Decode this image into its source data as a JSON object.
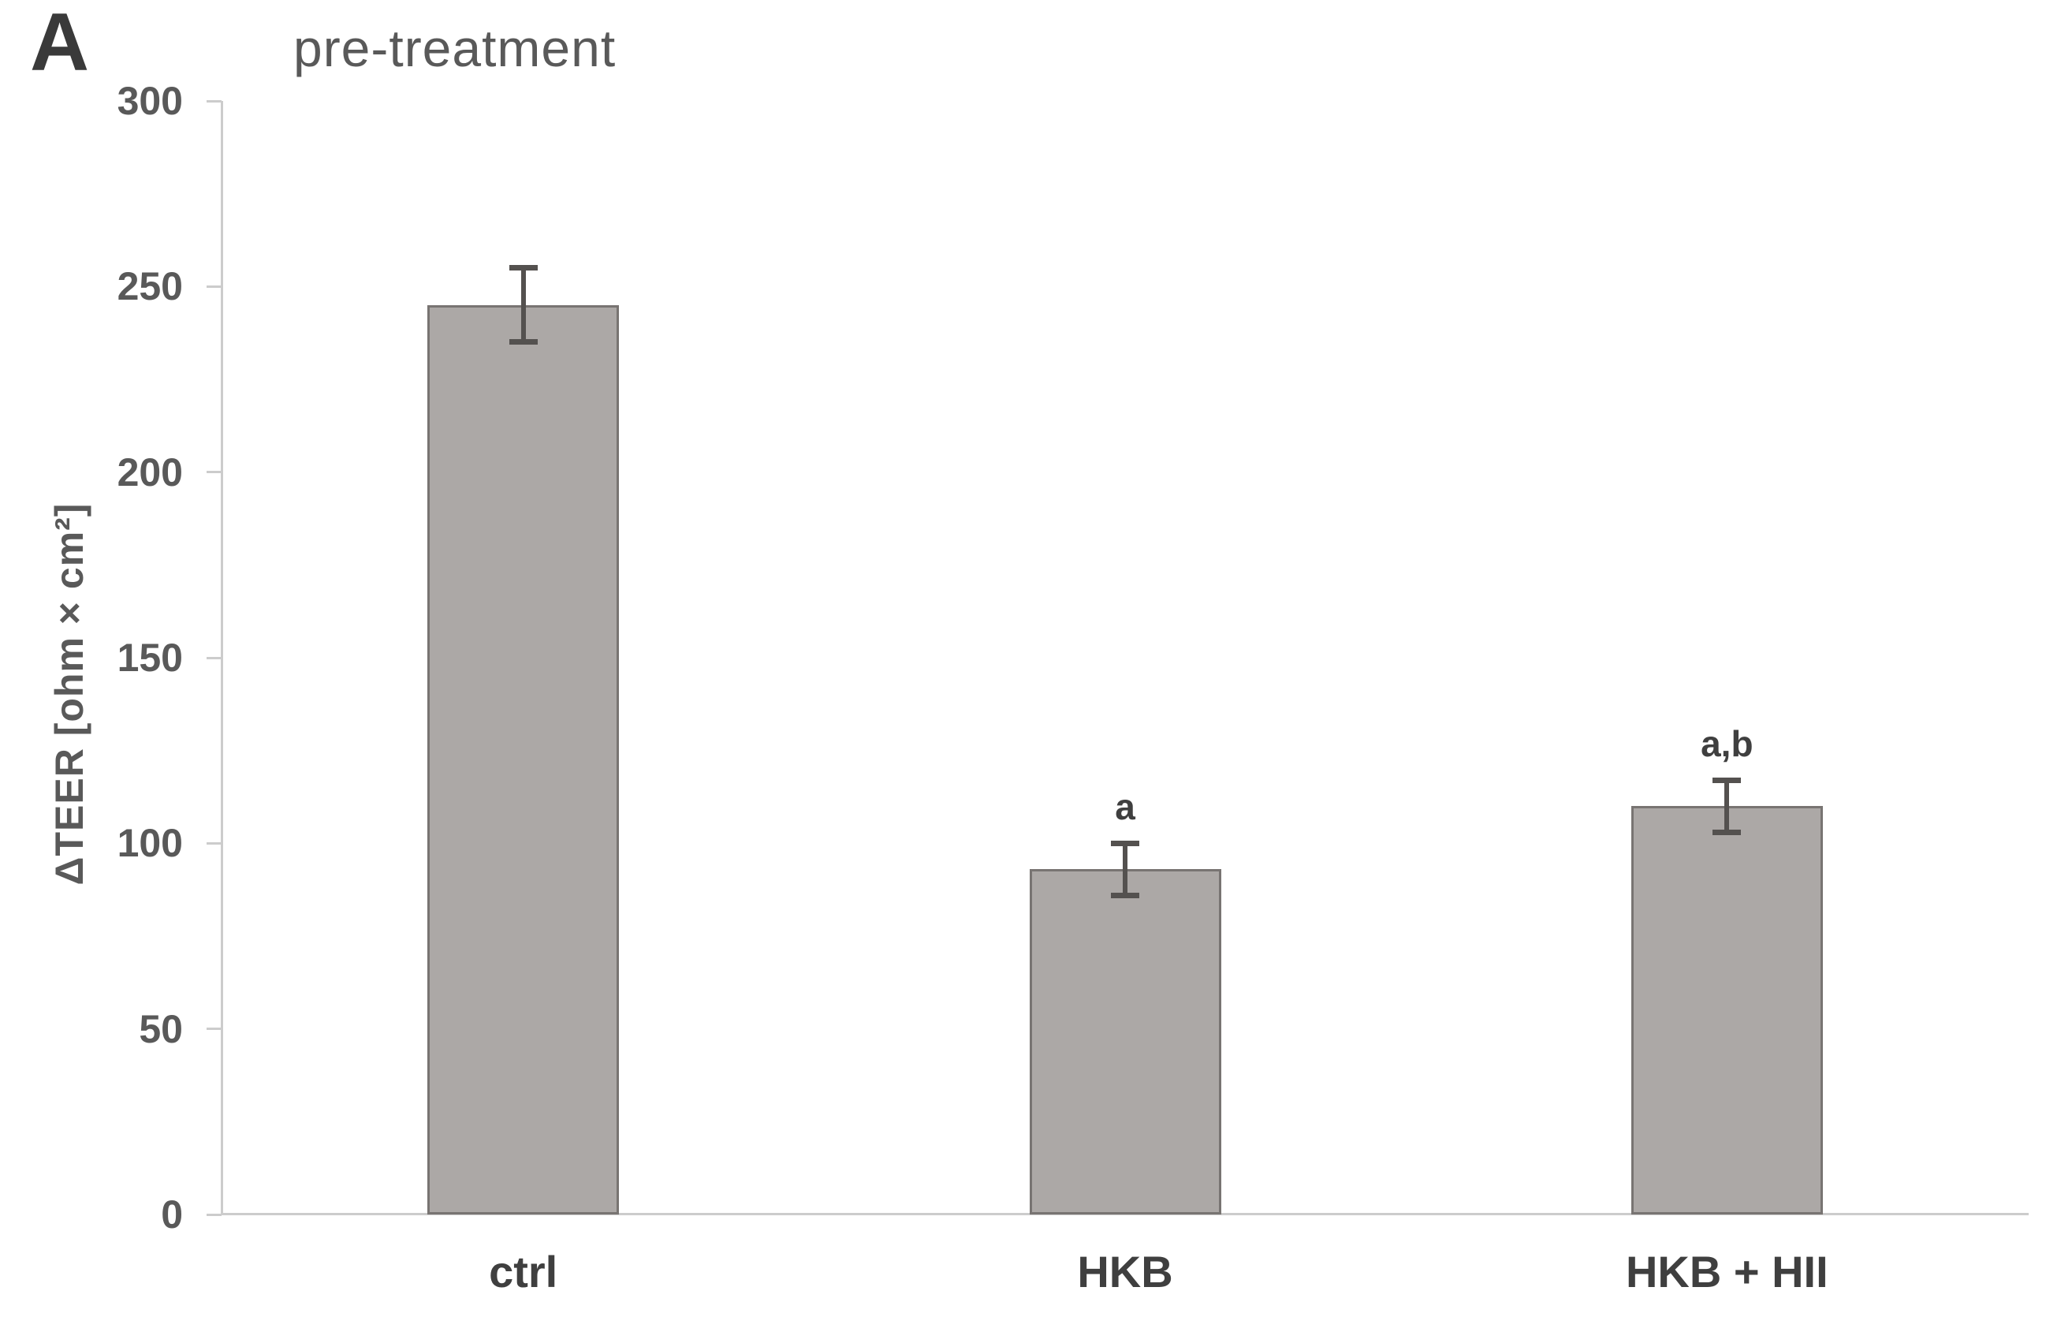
{
  "panel_label": "A",
  "chart_data": {
    "type": "bar",
    "title": "pre-treatment",
    "ylabel": "ΔTEER [ohm × cm²]",
    "categories": [
      "ctrl",
      "HKB",
      "HKB + HII"
    ],
    "values": [
      245,
      93,
      110
    ],
    "error_bars": [
      10,
      7,
      7
    ],
    "significance_labels": [
      "",
      "a",
      "a,b"
    ],
    "ylim": [
      0,
      300
    ],
    "yticks": [
      0,
      50,
      100,
      150,
      200,
      250,
      300
    ],
    "grid": false,
    "legend": "none",
    "colors": {
      "bar_fill": "#ACA8A6",
      "bar_border": "#787472",
      "error_bar": "#54514F",
      "axis_line": "#CCCCCC",
      "tick_label": "#595959",
      "title": "#595959",
      "ylabel": "#595959",
      "category_label": "#3F3F3F",
      "annotation": "#3F3F3F",
      "panel_label": "#3A3A3A"
    }
  }
}
